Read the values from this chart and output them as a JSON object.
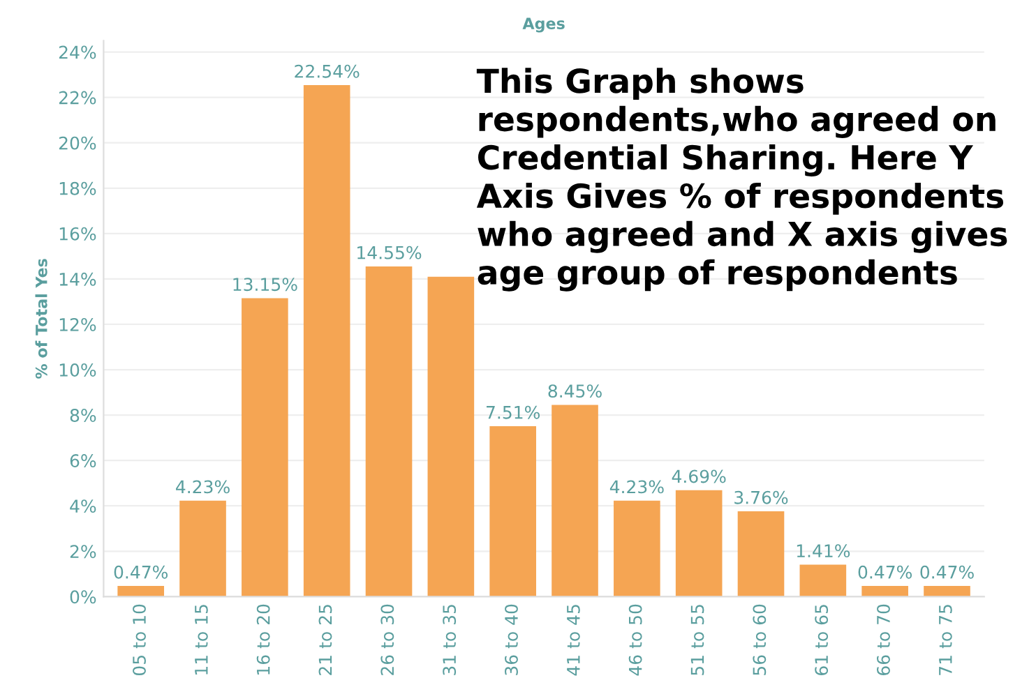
{
  "chart_data": {
    "type": "bar",
    "title": "Ages",
    "ylabel": "% of Total Yes",
    "categories": [
      "05 to 10",
      "11 to 15",
      "16 to 20",
      "21 to 25",
      "26 to 30",
      "31 to 35",
      "36 to 40",
      "41 to 45",
      "46 to 50",
      "51 to 55",
      "56 to 60",
      "61 to 65",
      "66 to 70",
      "71 to 75"
    ],
    "values": [
      0.47,
      4.23,
      13.15,
      22.54,
      14.55,
      14.1,
      7.51,
      8.45,
      4.23,
      4.69,
      3.76,
      1.41,
      0.47,
      0.47
    ],
    "value_labels": [
      "0.47%",
      "4.23%",
      "13.15%",
      "22.54%",
      "14.55%",
      null,
      "7.51%",
      "8.45%",
      "4.23%",
      "4.69%",
      "3.76%",
      "1.41%",
      "0.47%",
      "0.47%"
    ],
    "color": "#f5a553",
    "ylim": [
      0,
      24.5
    ],
    "yticks": [
      {
        "value": 0,
        "label": "0%"
      },
      {
        "value": 2,
        "label": "2%"
      },
      {
        "value": 4,
        "label": "4%"
      },
      {
        "value": 6,
        "label": "6%"
      },
      {
        "value": 8,
        "label": "8%"
      },
      {
        "value": 10,
        "label": "10%"
      },
      {
        "value": 12,
        "label": "12%"
      },
      {
        "value": 14,
        "label": "14%"
      },
      {
        "value": 16,
        "label": "16%"
      },
      {
        "value": 18,
        "label": "18%"
      },
      {
        "value": 20,
        "label": "20%"
      },
      {
        "value": 22,
        "label": "22%"
      },
      {
        "value": 24,
        "label": "24%"
      }
    ],
    "grid": "y",
    "annotations": [
      "This Graph shows respondents,who agreed on Credential Sharing. Here Y Axis Gives % of respondents who agreed and X axis gives age group of respondents"
    ]
  }
}
